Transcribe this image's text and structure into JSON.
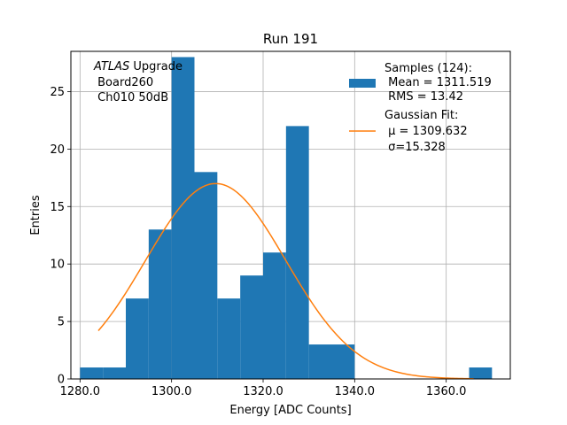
{
  "chart_data": {
    "type": "bar",
    "title": "Run 191",
    "xlabel": "Energy [ADC Counts]",
    "ylabel": "Entries",
    "xlim": [
      1278,
      1374
    ],
    "ylim": [
      0,
      28.5
    ],
    "grid": true,
    "x_ticks": [
      {
        "value": 1280,
        "label": "1280.0"
      },
      {
        "value": 1300,
        "label": "1300.0"
      },
      {
        "value": 1320,
        "label": "1320.0"
      },
      {
        "value": 1340,
        "label": "1340.0"
      },
      {
        "value": 1360,
        "label": "1360.0"
      }
    ],
    "y_ticks": [
      {
        "value": 0,
        "label": "0"
      },
      {
        "value": 5,
        "label": "5"
      },
      {
        "value": 10,
        "label": "10"
      },
      {
        "value": 15,
        "label": "15"
      },
      {
        "value": 20,
        "label": "20"
      },
      {
        "value": 25,
        "label": "25"
      }
    ],
    "bar_color": "#1f77b4",
    "fit_color": "#ff7f0e",
    "bins": [
      {
        "x0": 1280,
        "x1": 1285,
        "count": 1
      },
      {
        "x0": 1285,
        "x1": 1290,
        "count": 1
      },
      {
        "x0": 1290,
        "x1": 1295,
        "count": 7
      },
      {
        "x0": 1295,
        "x1": 1300,
        "count": 13
      },
      {
        "x0": 1300,
        "x1": 1305,
        "count": 28
      },
      {
        "x0": 1305,
        "x1": 1310,
        "count": 18
      },
      {
        "x0": 1310,
        "x1": 1315,
        "count": 7
      },
      {
        "x0": 1315,
        "x1": 1320,
        "count": 9
      },
      {
        "x0": 1320,
        "x1": 1325,
        "count": 11
      },
      {
        "x0": 1325,
        "x1": 1330,
        "count": 22
      },
      {
        "x0": 1330,
        "x1": 1335,
        "count": 3
      },
      {
        "x0": 1335,
        "x1": 1340,
        "count": 3
      },
      {
        "x0": 1365,
        "x1": 1370,
        "count": 1
      }
    ],
    "fit": {
      "mu": 1309.632,
      "sigma": 15.328,
      "amplitude": 17.0,
      "x_start": 1284,
      "x_end": 1366
    },
    "annotation": {
      "line1_italic": "ATLAS",
      "line1_rest": " Upgrade",
      "line2": " Board260",
      "line3": " Ch010 50dB"
    },
    "legend": {
      "placement": "upper-right",
      "samples_lines": [
        "Samples (124):",
        " Mean = 1311.519",
        " RMS = 13.42"
      ],
      "fit_header": "Gaussian Fit:",
      "fit_mu": " μ = 1309.632",
      "fit_sigma": " σ=15.328"
    }
  }
}
